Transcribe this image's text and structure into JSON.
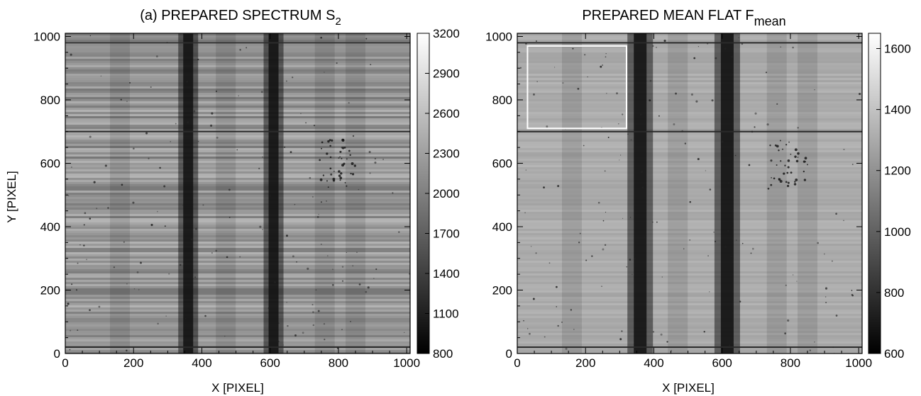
{
  "chart_data": [
    {
      "type": "heatmap",
      "title": "(a) PREPARED SPECTRUM  S",
      "title_sub": "2",
      "xlabel": "X [PIXEL]",
      "ylabel": "Y [PIXEL]",
      "xlim": [
        0,
        1010
      ],
      "ylim": [
        0,
        1010
      ],
      "x_ticks": [
        0,
        200,
        400,
        600,
        800,
        1000
      ],
      "y_ticks": [
        0,
        200,
        400,
        600,
        800,
        1000
      ],
      "colorbar": {
        "range": [
          800,
          3200
        ],
        "ticks": [
          800,
          1100,
          1400,
          1700,
          2000,
          2300,
          2600,
          2900,
          3200
        ],
        "colormap": "grayscale"
      },
      "features": {
        "dark_vertical_bands_x": [
          360,
          610
        ],
        "faint_vertical_bands_x": [
          160,
          470,
          760,
          850
        ],
        "dark_horizontal_lines_y": [
          20,
          700,
          980
        ]
      }
    },
    {
      "type": "heatmap",
      "title": "PREPARED MEAN FLAT F",
      "title_sub": "mean",
      "xlabel": "X  [PIXEL]",
      "ylabel": "",
      "xlim": [
        0,
        1010
      ],
      "ylim": [
        0,
        1010
      ],
      "x_ticks": [
        0,
        200,
        400,
        600,
        800,
        1000
      ],
      "y_ticks": [
        0,
        200,
        400,
        600,
        800,
        1000
      ],
      "colorbar": {
        "range": [
          600,
          1650
        ],
        "ticks": [
          600,
          800,
          1000,
          1200,
          1400,
          1600
        ],
        "colormap": "grayscale"
      },
      "box": {
        "x": [
          30,
          320
        ],
        "y": [
          710,
          970
        ],
        "color": "#ffffff"
      },
      "features": {
        "dark_vertical_bands_x": [
          360,
          615
        ],
        "faint_vertical_bands_x": [
          160,
          470,
          760,
          850
        ],
        "dark_horizontal_lines_y": [
          20,
          700,
          980
        ]
      }
    }
  ]
}
